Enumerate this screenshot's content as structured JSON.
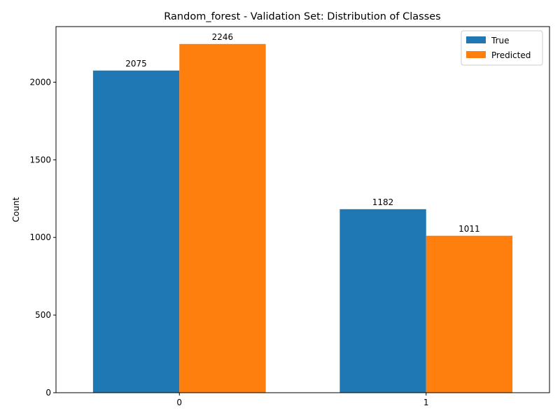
{
  "chart_data": {
    "type": "bar",
    "title": "Random_forest - Validation Set: Distribution of Classes",
    "xlabel": "",
    "ylabel": "Count",
    "categories": [
      "0",
      "1"
    ],
    "series": [
      {
        "name": "True",
        "values": [
          2075,
          1182
        ],
        "color": "#1f77b4"
      },
      {
        "name": "Predicted",
        "values": [
          2246,
          1011
        ],
        "color": "#ff7f0e"
      }
    ],
    "ylim": [
      0,
      2358
    ],
    "yticks": [
      0,
      500,
      1000,
      1500,
      2000
    ],
    "grid": false,
    "legend": "top-right",
    "show_data_labels": true
  }
}
